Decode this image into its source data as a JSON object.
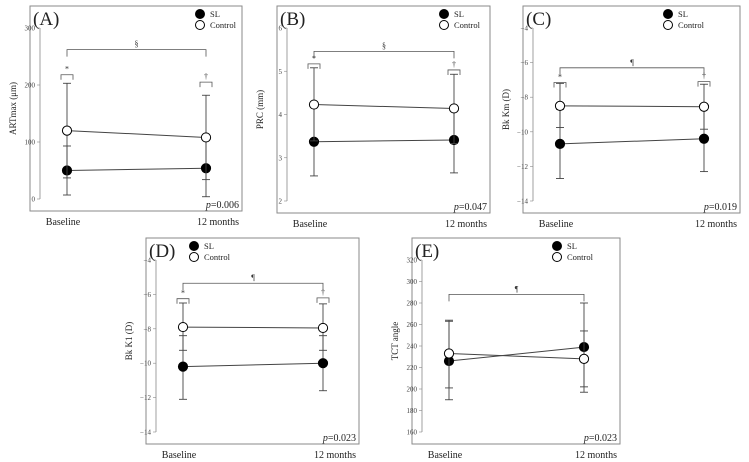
{
  "figure": {
    "colors": {
      "sl": "#000000",
      "control": "#ffffff",
      "line": "#444444"
    },
    "legend": {
      "sl": "SL",
      "control": "Control"
    }
  },
  "chart_data": [
    {
      "type": "line",
      "panel": "(A)",
      "ylabel": "ARTmax (μm)",
      "ylim": [
        0,
        300
      ],
      "yticks": [
        0,
        100,
        200,
        300
      ],
      "categories": [
        "Baseline",
        "12 months"
      ],
      "series": [
        {
          "name": "SL",
          "values": [
            50,
            54
          ],
          "err_low": [
            7,
            4
          ],
          "err_high": [
            93,
            105
          ]
        },
        {
          "name": "Control",
          "values": [
            120,
            108
          ],
          "err_low": [
            37,
            34
          ],
          "err_high": [
            203,
            182
          ]
        }
      ],
      "bracket_top": {
        "symbol": "§",
        "level": 262
      },
      "brackets_pair": [
        {
          "symbol": "*",
          "level": 218
        },
        {
          "symbol": "†",
          "level": 205
        }
      ],
      "p_value": "p=0.006"
    },
    {
      "type": "line",
      "panel": "(B)",
      "ylabel": "PRC (mm)",
      "ylim": [
        2,
        6
      ],
      "yticks": [
        2,
        3,
        4,
        5,
        6
      ],
      "categories": [
        "Baseline",
        "12 months"
      ],
      "series": [
        {
          "name": "SL",
          "values": [
            3.37,
            3.41
          ],
          "err_low": [
            2.58,
            2.65
          ],
          "err_high": [
            4.17,
            4.16
          ]
        },
        {
          "name": "Control",
          "values": [
            4.23,
            4.14
          ],
          "err_low": [
            3.39,
            3.33
          ],
          "err_high": [
            5.08,
            4.93
          ]
        }
      ],
      "bracket_top": {
        "symbol": "§",
        "level": 5.46
      },
      "brackets_pair": [
        {
          "symbol": "*",
          "level": 5.17
        },
        {
          "symbol": "†",
          "level": 5.03
        }
      ],
      "p_value": "p=0.047"
    },
    {
      "type": "line",
      "panel": "(C)",
      "ylabel": "Bk Km (D)",
      "ylim": [
        -14,
        -4
      ],
      "yticks": [
        -14,
        -12,
        -10,
        -8,
        -6,
        -4
      ],
      "categories": [
        "Baseline",
        "12 months"
      ],
      "series": [
        {
          "name": "SL",
          "values": [
            -10.7,
            -10.4
          ],
          "err_low": [
            -12.7,
            -12.3
          ],
          "err_high": [
            -8.7,
            -8.5
          ]
        },
        {
          "name": "Control",
          "values": [
            -8.5,
            -8.55
          ],
          "err_low": [
            -9.75,
            -9.85
          ],
          "err_high": [
            -7.2,
            -7.25
          ]
        }
      ],
      "bracket_top": {
        "symbol": "¶",
        "level": -6.3
      },
      "brackets_pair": [
        {
          "symbol": "*",
          "level": -7.15
        },
        {
          "symbol": "†",
          "level": -7.1
        }
      ],
      "p_value": "p=0.019"
    },
    {
      "type": "line",
      "panel": "(D)",
      "ylabel": "Bk K1 (D)",
      "ylim": [
        -14,
        -4
      ],
      "yticks": [
        -14,
        -12,
        -10,
        -8,
        -6,
        -4
      ],
      "categories": [
        "Baseline",
        "12 months"
      ],
      "series": [
        {
          "name": "SL",
          "values": [
            -10.2,
            -10.0
          ],
          "err_low": [
            -12.1,
            -11.6
          ],
          "err_high": [
            -8.4,
            -8.4
          ]
        },
        {
          "name": "Control",
          "values": [
            -7.9,
            -7.95
          ],
          "err_low": [
            -9.25,
            -9.25
          ],
          "err_high": [
            -6.5,
            -6.55
          ]
        }
      ],
      "bracket_top": {
        "symbol": "¶",
        "level": -5.35
      },
      "brackets_pair": [
        {
          "symbol": "*",
          "level": -6.25
        },
        {
          "symbol": "†",
          "level": -6.2
        }
      ],
      "p_value": "p=0.023"
    },
    {
      "type": "line",
      "panel": "(E)",
      "ylabel": "TCT angle",
      "ylim": [
        160,
        320
      ],
      "yticks": [
        160,
        180,
        200,
        220,
        240,
        260,
        280,
        300,
        320
      ],
      "categories": [
        "Baseline",
        "12 months"
      ],
      "series": [
        {
          "name": "SL",
          "values": [
            226,
            239
          ],
          "err_low": [
            190,
            197
          ],
          "err_high": [
            263,
            280
          ]
        },
        {
          "name": "Control",
          "values": [
            233,
            228
          ],
          "err_low": [
            201,
            202
          ],
          "err_high": [
            264,
            254
          ]
        }
      ],
      "bracket_top": {
        "symbol": "¶",
        "level": 288
      },
      "brackets_pair": [],
      "p_value": "p=0.023"
    }
  ]
}
